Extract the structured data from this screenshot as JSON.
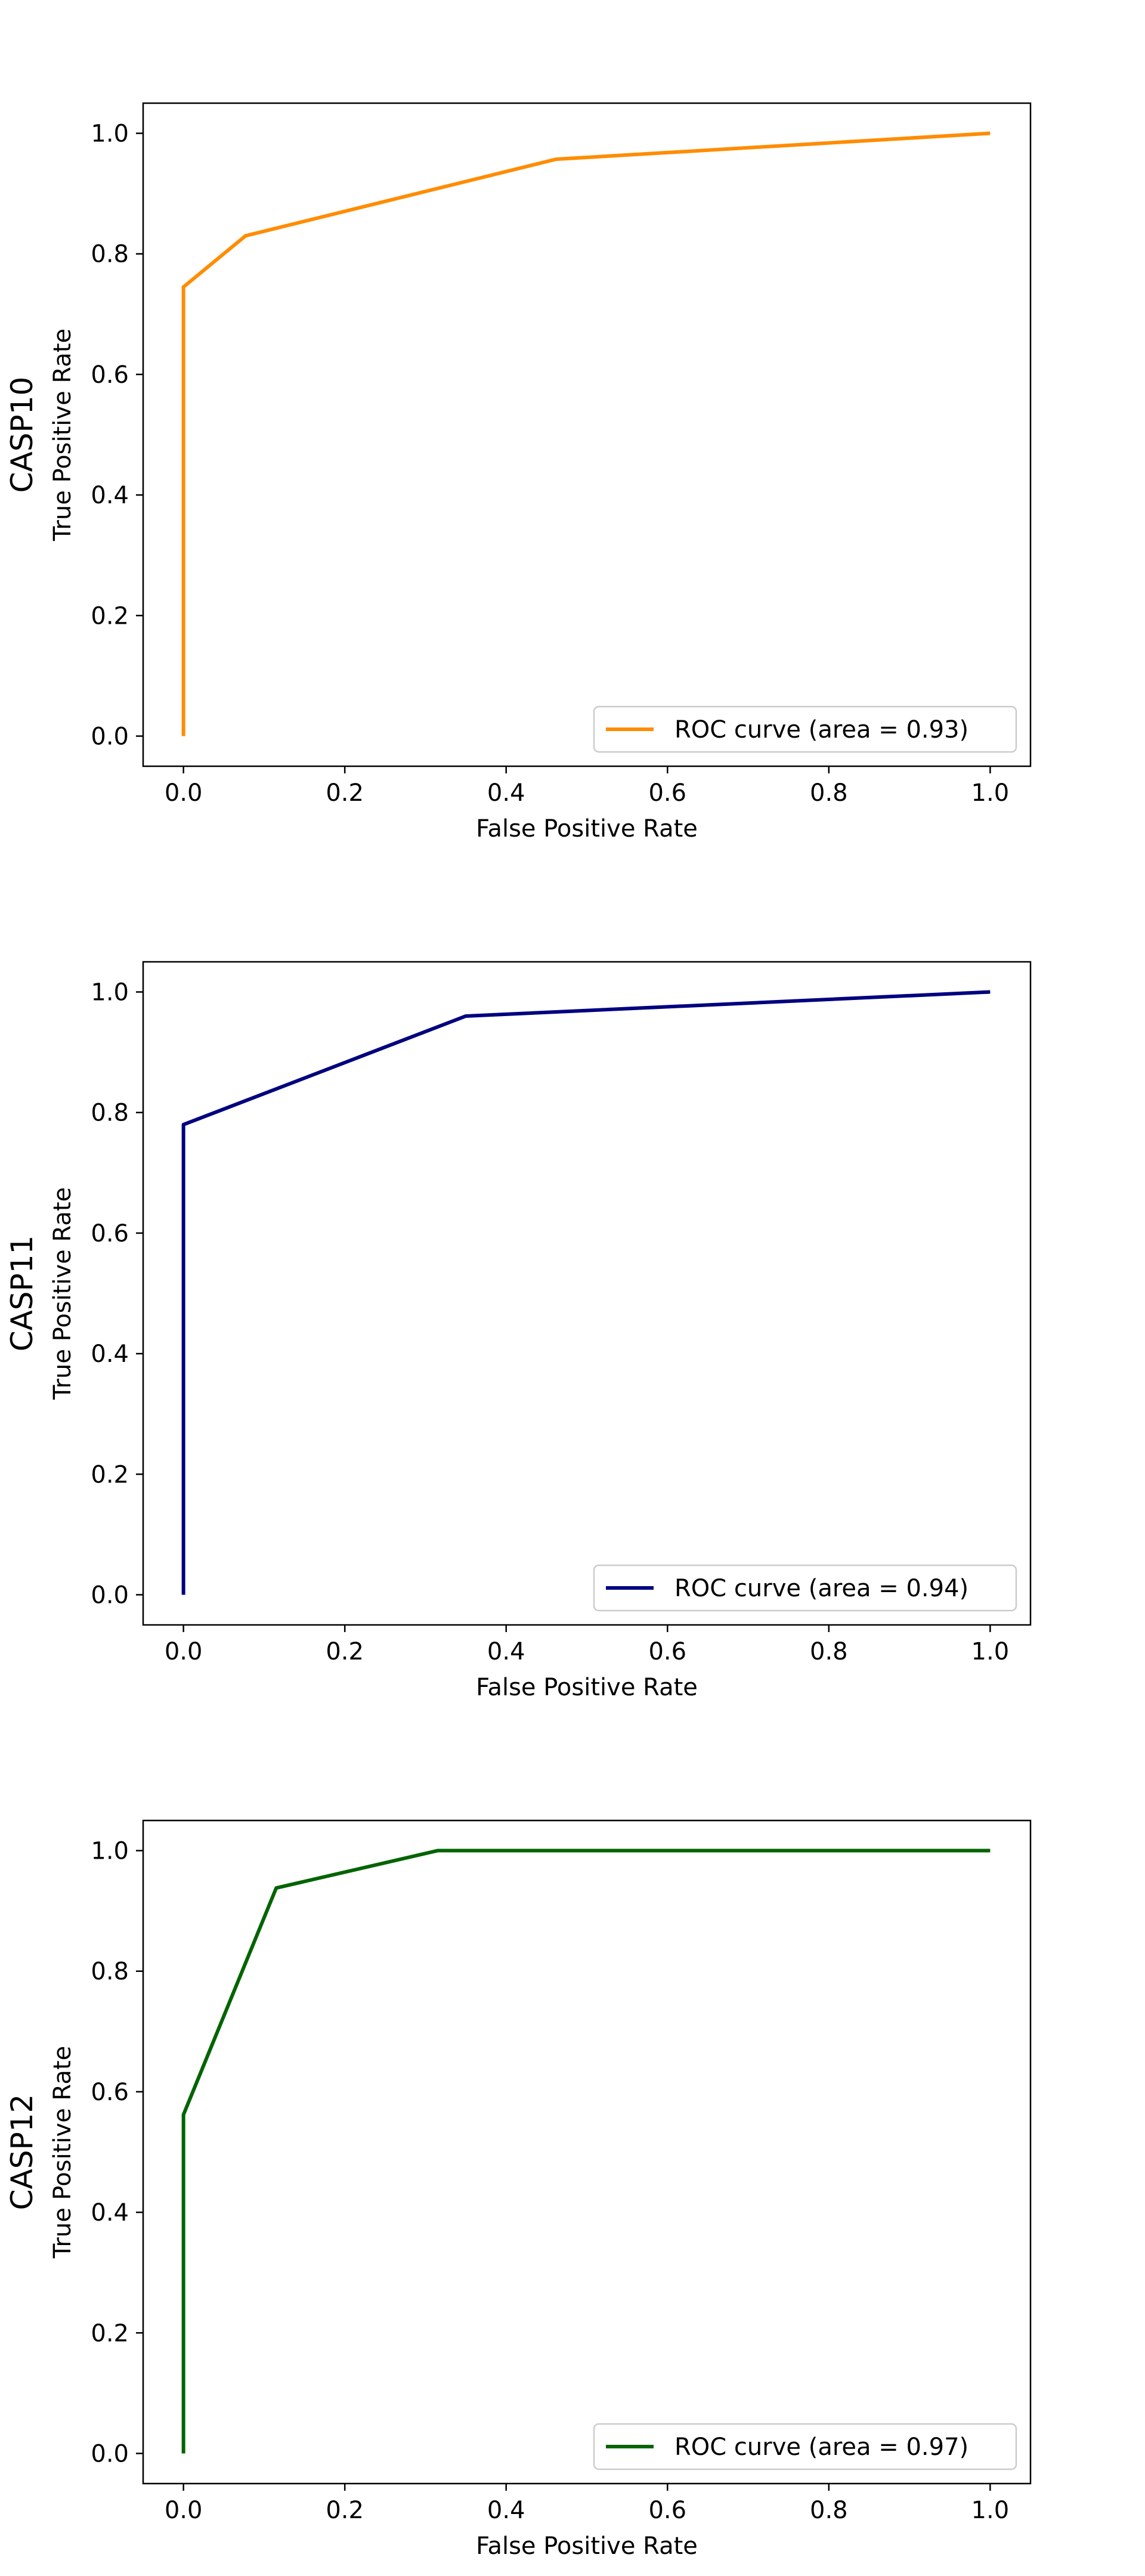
{
  "chart_data": [
    {
      "type": "line",
      "title": "",
      "row_label": "CASP10",
      "xlabel": "False Positive Rate",
      "ylabel": "True Positive Rate",
      "xlim": [
        -0.05,
        1.05
      ],
      "ylim": [
        -0.05,
        1.05
      ],
      "xticks": [
        "0.0",
        "0.2",
        "0.4",
        "0.6",
        "0.8",
        "1.0"
      ],
      "yticks": [
        "0.0",
        "0.2",
        "0.4",
        "0.6",
        "0.8",
        "1.0"
      ],
      "grid": false,
      "legend_position": "lower right",
      "series": [
        {
          "name": "ROC curve (area = 0.93)",
          "color": "#ff8c00",
          "x": [
            0.0,
            0.0,
            0.077,
            0.462,
            1.0
          ],
          "y": [
            0.0,
            0.745,
            0.83,
            0.957,
            1.0
          ]
        }
      ]
    },
    {
      "type": "line",
      "title": "",
      "row_label": "CASP11",
      "xlabel": "False Positive Rate",
      "ylabel": "True Positive Rate",
      "xlim": [
        -0.05,
        1.05
      ],
      "ylim": [
        -0.05,
        1.05
      ],
      "xticks": [
        "0.0",
        "0.2",
        "0.4",
        "0.6",
        "0.8",
        "1.0"
      ],
      "yticks": [
        "0.0",
        "0.2",
        "0.4",
        "0.6",
        "0.8",
        "1.0"
      ],
      "grid": false,
      "legend_position": "lower right",
      "series": [
        {
          "name": "ROC curve (area = 0.94)",
          "color": "#000080",
          "x": [
            0.0,
            0.0,
            0.35,
            1.0
          ],
          "y": [
            0.0,
            0.78,
            0.96,
            1.0
          ]
        }
      ]
    },
    {
      "type": "line",
      "title": "",
      "row_label": "CASP12",
      "xlabel": "False Positive Rate",
      "ylabel": "True Positive Rate",
      "xlim": [
        -0.05,
        1.05
      ],
      "ylim": [
        -0.05,
        1.05
      ],
      "xticks": [
        "0.0",
        "0.2",
        "0.4",
        "0.6",
        "0.8",
        "1.0"
      ],
      "yticks": [
        "0.0",
        "0.2",
        "0.4",
        "0.6",
        "0.8",
        "1.0"
      ],
      "grid": false,
      "legend_position": "lower right",
      "series": [
        {
          "name": "ROC curve (area = 0.97)",
          "color": "#006400",
          "x": [
            0.0,
            0.0,
            0.115,
            0.315,
            1.0
          ],
          "y": [
            0.0,
            0.562,
            0.938,
            1.0,
            1.0
          ]
        }
      ]
    }
  ]
}
